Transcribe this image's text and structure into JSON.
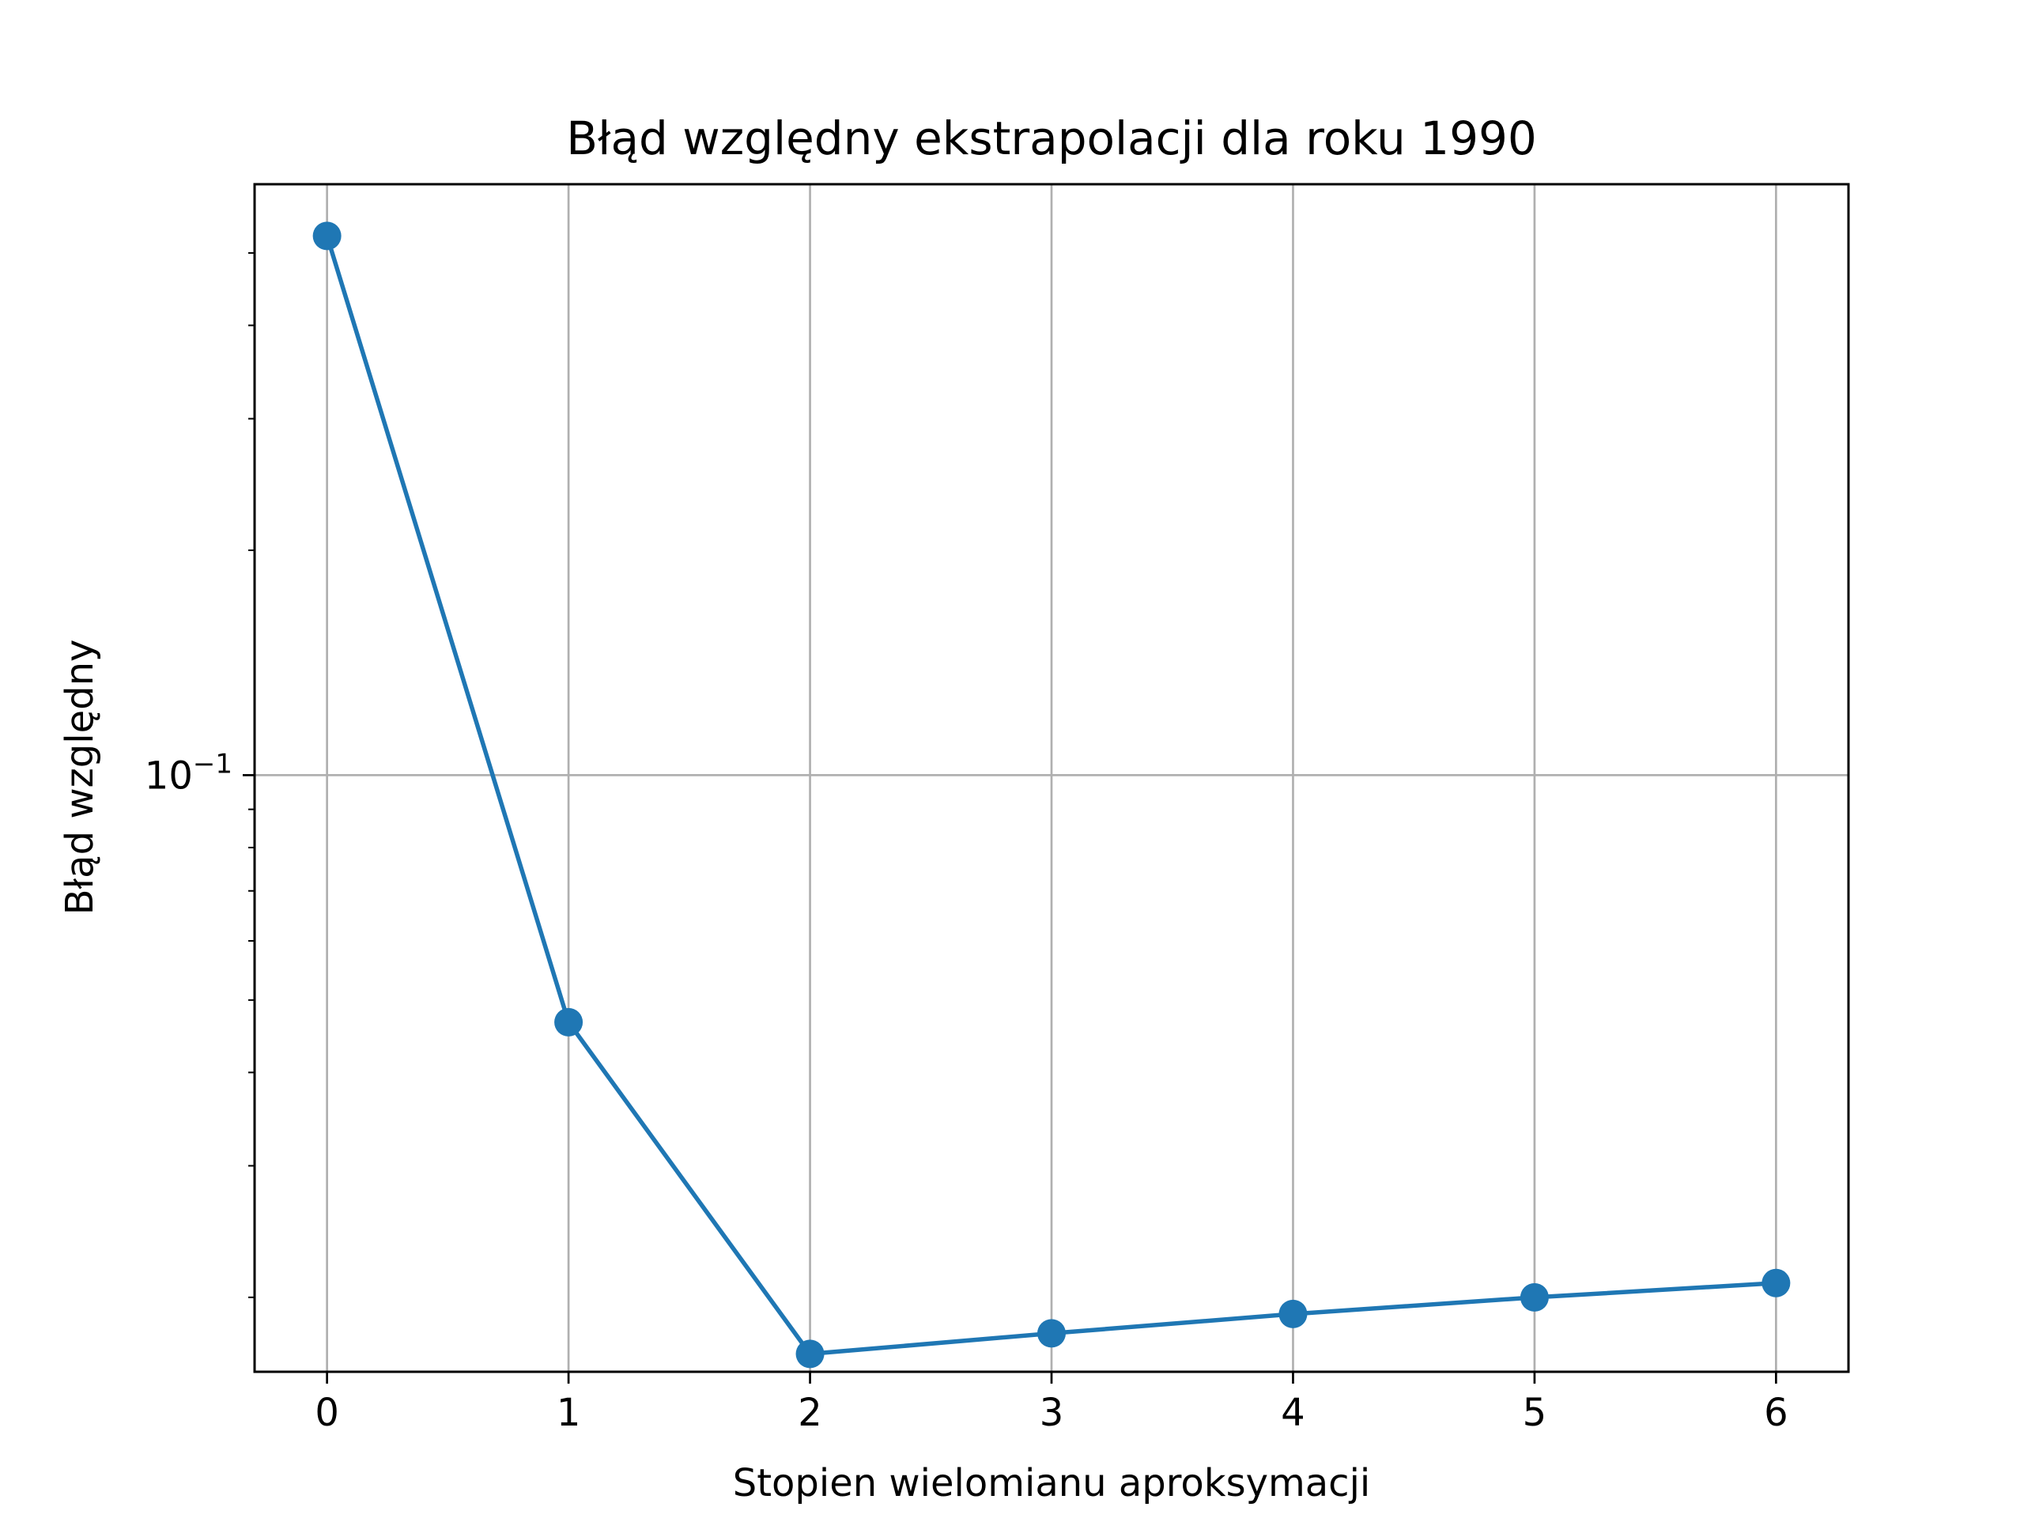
{
  "chart_data": {
    "type": "line",
    "title": "Błąd względny ekstrapolacji dla roku 1990",
    "xlabel": "Stopien wielomianu aproksymacji",
    "ylabel": "Błąd względny",
    "x": [
      0,
      1,
      2,
      3,
      4,
      5,
      6
    ],
    "xticks": [
      "0",
      "1",
      "2",
      "3",
      "4",
      "5",
      "6"
    ],
    "xlim": [
      -0.3,
      6.3
    ],
    "yscale": "log",
    "ylim": [
      0.0159,
      0.618
    ],
    "ytick_major": {
      "base": "10",
      "exponent": "−1",
      "value": 0.1
    },
    "ytick_minor": [
      0.02,
      0.03,
      0.04,
      0.05,
      0.06,
      0.07,
      0.08,
      0.09,
      0.2,
      0.3,
      0.4,
      0.5
    ],
    "series": [
      {
        "values": [
          0.527,
          0.0467,
          0.0168,
          0.0179,
          0.019,
          0.02,
          0.0209
        ],
        "color": "#1f77b4",
        "marker": "circle"
      }
    ],
    "grid": true,
    "legend": "none"
  }
}
